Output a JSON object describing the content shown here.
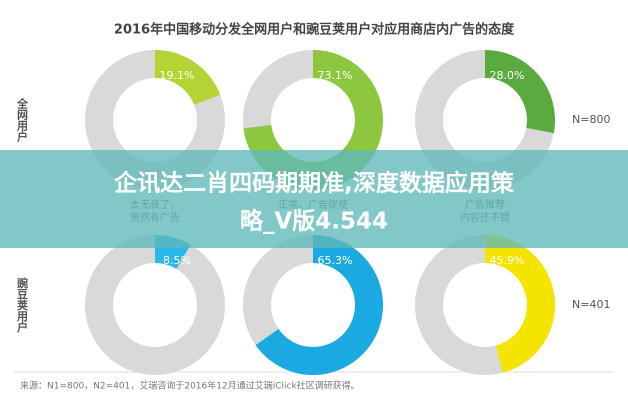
{
  "chart_data": {
    "type": "donut",
    "title": "2016年中国移动分发全网用户和豌豆荚用户对应用商店内广告的态度",
    "captions": [
      [
        "太无良了，",
        "居然有广告"
      ],
      [
        "正常，广告促使"
      ],
      [
        "广告推荐",
        "内容还不错"
      ]
    ],
    "rows": [
      {
        "label": "全网用户",
        "note": "N=800",
        "charts": [
          {
            "values": [
              19.1
            ],
            "value_labels": [
              "19.1%"
            ],
            "color": "#b5d334"
          },
          {
            "values": [
              73.1
            ],
            "value_labels": [
              "73.1%"
            ],
            "color": "#8dc63f"
          },
          {
            "values": [
              28.0
            ],
            "value_labels": [
              "28.0%"
            ],
            "color": "#5aab3e"
          }
        ]
      },
      {
        "label": "豌豆荚用户",
        "note": "N=401",
        "charts": [
          {
            "values": [
              8.5
            ],
            "value_labels": [
              "8.5%"
            ],
            "color": "#2bb7ea"
          },
          {
            "values": [
              65.3
            ],
            "value_labels": [
              "65.3%"
            ],
            "color": "#1aa9e0"
          },
          {
            "values": [
              45.9
            ],
            "value_labels": [
              "45.9%"
            ],
            "color": "#f5e400"
          }
        ]
      }
    ],
    "total": 100,
    "source": "来源：N1=800，N2=401，艾瑞咨询于2016年12月通过艾瑞iClick社区调研获得。"
  },
  "overlay": {
    "lines": [
      "企讯达二肖四码期期准,深度数据应用策",
      "略_V版4.544"
    ]
  }
}
